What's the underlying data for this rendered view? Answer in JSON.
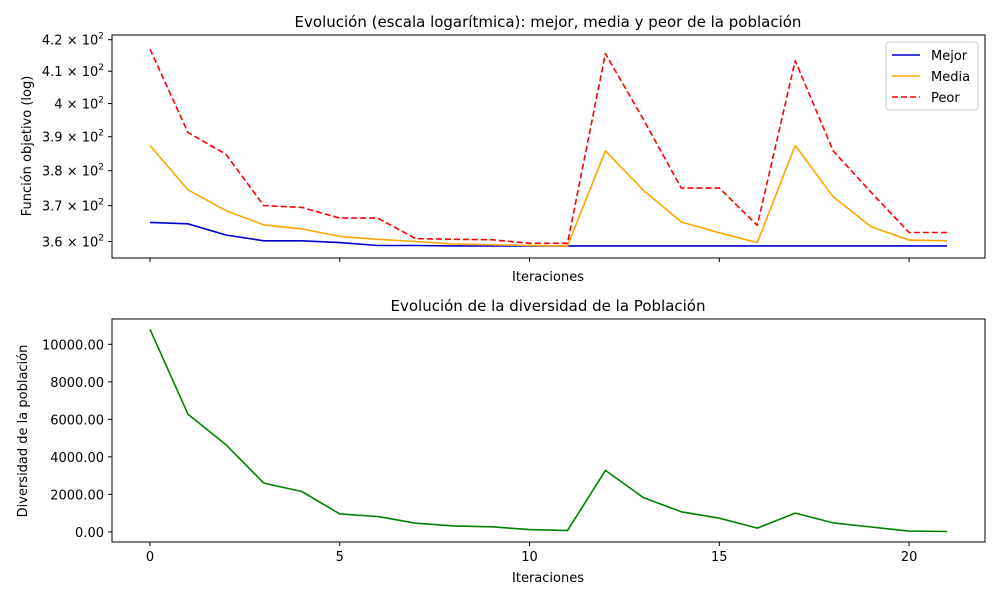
{
  "chart_data": [
    {
      "type": "line",
      "title": "Evolución (escala logarítmica): mejor, media y peor de la población",
      "xlabel": "Iteraciones",
      "ylabel": "Función objetivo (log)",
      "yscale": "log",
      "xlim": [
        -1,
        22
      ],
      "ylim": [
        355.5,
        421.5
      ],
      "x_tick_labels_visible": false,
      "x": [
        0,
        1,
        2,
        3,
        4,
        5,
        6,
        7,
        8,
        9,
        10,
        11,
        12,
        13,
        14,
        15,
        16,
        17,
        18,
        19,
        20,
        21
      ],
      "yticks": [
        {
          "value": 360,
          "mantissa": "3.6 × 10",
          "exp": "2"
        },
        {
          "value": 370,
          "mantissa": "3.7 × 10",
          "exp": "2"
        },
        {
          "value": 380,
          "mantissa": "3.8 × 10",
          "exp": "2"
        },
        {
          "value": 390,
          "mantissa": "3.9 × 10",
          "exp": "2"
        },
        {
          "value": 400,
          "mantissa": "4 × 10",
          "exp": "2"
        },
        {
          "value": 410,
          "mantissa": "4.1 × 10",
          "exp": "2"
        },
        {
          "value": 420,
          "mantissa": "4.2 × 10",
          "exp": "2"
        }
      ],
      "legend_position": "top-right",
      "series": [
        {
          "name": "Mejor",
          "color": "#0000cc",
          "dash": "solid",
          "values": [
            365.3,
            364.9,
            361.8,
            360.2,
            360.2,
            359.7,
            358.9,
            358.9,
            358.8,
            358.8,
            358.8,
            358.8,
            358.8,
            358.8,
            358.8,
            358.8,
            358.8,
            358.8,
            358.8,
            358.8,
            358.8,
            358.8
          ]
        },
        {
          "name": "Media",
          "color": "#ffa500",
          "dash": "solid",
          "values": [
            387.4,
            374.5,
            368.6,
            364.6,
            363.5,
            361.4,
            360.6,
            360.0,
            359.3,
            359.1,
            358.9,
            358.8,
            385.8,
            374.4,
            365.4,
            362.4,
            359.7,
            387.4,
            372.5,
            364.1,
            360.4,
            360.2
          ]
        },
        {
          "name": "Peor",
          "color": "#ff0000",
          "dash": "dashed",
          "values": [
            417.0,
            391.3,
            384.8,
            370.0,
            369.5,
            366.5,
            366.5,
            360.8,
            360.6,
            360.5,
            359.5,
            359.5,
            415.6,
            395.2,
            375.0,
            375.0,
            364.5,
            413.3,
            385.8,
            373.8,
            362.5,
            362.5
          ]
        }
      ]
    },
    {
      "type": "line",
      "title": "Evolución de la diversidad de la Población",
      "xlabel": "Iteraciones",
      "ylabel": "Diversidad de la población",
      "xlim": [
        -1,
        22
      ],
      "ylim": [
        -540,
        11350
      ],
      "xticks": [
        0,
        5,
        10,
        15,
        20
      ],
      "yticks": [
        0,
        2000,
        4000,
        6000,
        8000,
        10000
      ],
      "ytick_labels": [
        "0.00",
        "2000.00",
        "4000.00",
        "6000.00",
        "8000.00",
        "10000.00"
      ],
      "x": [
        0,
        1,
        2,
        3,
        4,
        5,
        6,
        7,
        8,
        9,
        10,
        11,
        12,
        13,
        14,
        15,
        16,
        17,
        18,
        19,
        20,
        21
      ],
      "series": [
        {
          "color": "#008000",
          "dash": "solid",
          "values": [
            10800,
            6280,
            4650,
            2600,
            2150,
            960,
            820,
            460,
            320,
            270,
            120,
            70,
            3280,
            1830,
            1070,
            730,
            200,
            1000,
            480,
            260,
            40,
            20
          ]
        }
      ]
    }
  ]
}
